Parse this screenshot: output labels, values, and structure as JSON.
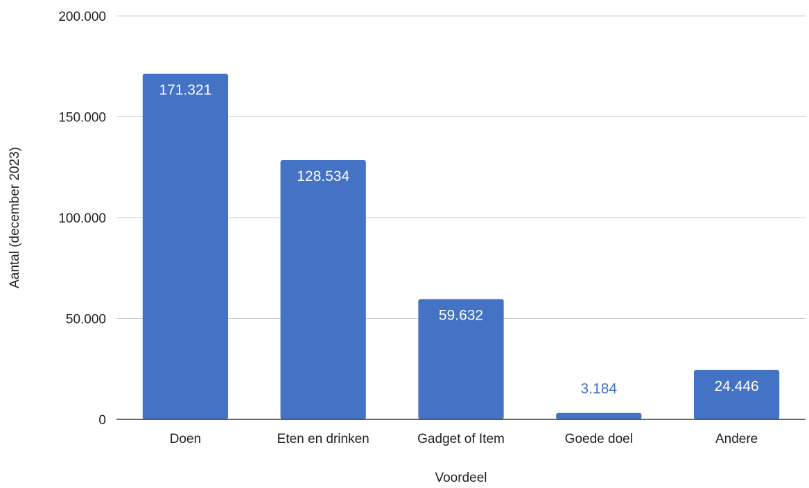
{
  "chart_data": {
    "type": "bar",
    "title": "",
    "xlabel": "Voordeel",
    "ylabel": "Aantal (december 2023)",
    "categories": [
      "Doen",
      "Eten en drinken",
      "Gadget of Item",
      "Goede doel",
      "Andere"
    ],
    "values": [
      171321,
      128534,
      59632,
      3184,
      24446
    ],
    "value_labels": [
      "171.321",
      "128.534",
      "59.632",
      "3.184",
      "24.446"
    ],
    "ylim": [
      0,
      200000
    ],
    "yticks": [
      {
        "value": 0,
        "label": "0"
      },
      {
        "value": 50000,
        "label": "50.000"
      },
      {
        "value": 100000,
        "label": "100.000"
      },
      {
        "value": 150000,
        "label": "150.000"
      },
      {
        "value": 200000,
        "label": "200.000"
      }
    ],
    "grid": true,
    "legend": "none",
    "colors": {
      "bar": "#4472c4",
      "label_inside": "#ffffff",
      "label_outside": "#4472c4",
      "grid": "#cccccc",
      "axis": "#333333"
    }
  }
}
